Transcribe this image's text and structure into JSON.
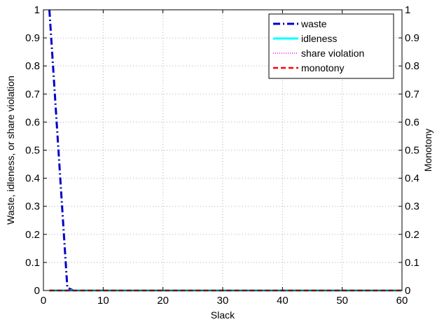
{
  "chart_data": {
    "type": "line",
    "xlabel": "Slack",
    "ylabel": "Waste, idleness, or share violation",
    "ylabel_right": "Monotony",
    "xlim": [
      0,
      60
    ],
    "ylim": [
      0,
      1
    ],
    "ylim_right": [
      0,
      1
    ],
    "xticks": [
      0,
      10,
      20,
      30,
      40,
      50,
      60
    ],
    "yticks": [
      0,
      0.1,
      0.2,
      0.3,
      0.4,
      0.5,
      0.6,
      0.7,
      0.8,
      0.9,
      1
    ],
    "ytick_labels": [
      "0",
      "0.1",
      "0.2",
      "0.3",
      "0.4",
      "0.5",
      "0.6",
      "0.7",
      "0.8",
      "0.9",
      "1"
    ],
    "grid": true,
    "legend_position": "top-right",
    "series": [
      {
        "name": "waste",
        "axis": "left",
        "color": "#0000cc",
        "style": "dash-dot",
        "points": [
          [
            1,
            1.0
          ],
          [
            4,
            0.01
          ],
          [
            5,
            0.0
          ],
          [
            60,
            0.0
          ]
        ]
      },
      {
        "name": "idleness",
        "axis": "left",
        "color": "#00ffff",
        "style": "solid",
        "points": [
          [
            1,
            0.0
          ],
          [
            60,
            0.0
          ]
        ]
      },
      {
        "name": "share violation",
        "axis": "left",
        "color": "#ff00ff",
        "style": "dotted",
        "points": [
          [
            1,
            0.0
          ],
          [
            60,
            0.0
          ]
        ]
      },
      {
        "name": "monotony",
        "axis": "right",
        "color": "#ff0000",
        "style": "dashed",
        "points": [
          [
            1,
            0.0
          ],
          [
            60,
            0.0
          ]
        ]
      }
    ]
  }
}
